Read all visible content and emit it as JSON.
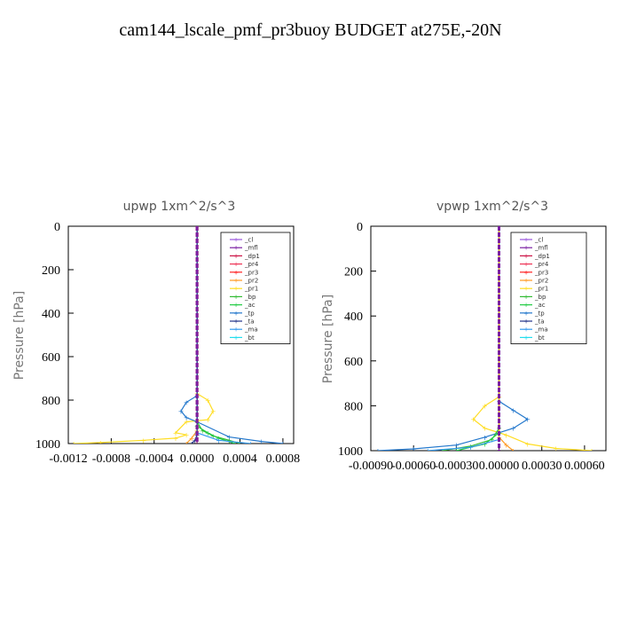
{
  "title": "cam144_lscale_pmf_pr3buoy  BUDGET at275E,-20N",
  "legend_colors": {
    "cl": "#9955dd",
    "mfl": "#7a1fa2",
    "dp1": "#cc1144",
    "pr4": "#ee3355",
    "pr3": "#ff2222",
    "pr2": "#ff9922",
    "pr1": "#ffdd22",
    "bp": "#33bb33",
    "ac": "#22cc44",
    "tp": "#2277cc",
    "ta": "#223388",
    "ma": "#3399ee",
    "bt": "#22ddee"
  },
  "chart_data": [
    {
      "type": "line",
      "title": "upwp   1xm^2/s^3",
      "ylabel": "Pressure  [hPa]",
      "xlim": [
        -0.0012,
        0.0009
      ],
      "ylim": [
        1000,
        0
      ],
      "xticks": [
        -0.0012,
        -0.0008,
        -0.0004,
        0.0,
        0.0004,
        0.0008
      ],
      "xtick_labels": [
        "-0.0012",
        "-0.0008",
        "-0.0004",
        "0.0000",
        "0.0004",
        "0.0008"
      ],
      "yticks": [
        0,
        200,
        400,
        600,
        800,
        1000
      ],
      "ytick_labels": [
        "0",
        "200",
        "400",
        "600",
        "800",
        "1000"
      ],
      "legend": [
        "_cl",
        "_mfl",
        "_dp1",
        "_pr4",
        "_pr3",
        "_pr2",
        "_pr1",
        "_bp",
        "_ac",
        "_tp",
        "_ta",
        "_ma",
        "_bt"
      ],
      "legend_position": "top-right",
      "series": [
        {
          "name": "_pr1",
          "color_key": "pr1",
          "x": [
            0,
            0,
            0.0001,
            0.00015,
            0.0001,
            -0.0001,
            -0.0002,
            -0.0001,
            -0.0002,
            -0.0005,
            -0.0009,
            -0.00115
          ],
          "y": [
            0,
            770,
            800,
            850,
            890,
            900,
            950,
            960,
            975,
            985,
            995,
            1000
          ]
        },
        {
          "name": "_tp",
          "color_key": "tp",
          "x": [
            0,
            0,
            -0.0001,
            -0.00015,
            -0.0001,
            0,
            0.0003,
            0.0006,
            0.0008
          ],
          "y": [
            0,
            780,
            810,
            850,
            880,
            900,
            970,
            990,
            1000
          ]
        },
        {
          "name": "_bp",
          "color_key": "bp",
          "x": [
            0,
            0,
            5e-05,
            0.00015,
            0.0003,
            0.0004
          ],
          "y": [
            0,
            900,
            940,
            965,
            985,
            1000
          ]
        },
        {
          "name": "_ac",
          "color_key": "ac",
          "x": [
            0,
            0,
            0.0001,
            0.0002,
            0.00035
          ],
          "y": [
            0,
            920,
            950,
            975,
            1000
          ]
        },
        {
          "name": "_pr2",
          "color_key": "pr2",
          "x": [
            0,
            0,
            -5e-05,
            -0.0001
          ],
          "y": [
            0,
            940,
            975,
            1000
          ]
        },
        {
          "name": "_ma",
          "color_key": "ma",
          "x": [
            0,
            0,
            0.0002,
            0.0005
          ],
          "y": [
            0,
            950,
            985,
            1000
          ]
        },
        {
          "name": "_ta",
          "color_key": "ta",
          "x": [
            0,
            0,
            -2e-05,
            -5e-05
          ],
          "y": [
            0,
            960,
            985,
            1000
          ]
        },
        {
          "name": "_dp1",
          "color_key": "dp1",
          "x": [
            0,
            0
          ],
          "y": [
            0,
            1000
          ]
        },
        {
          "name": "_pr3",
          "color_key": "pr3",
          "x": [
            0,
            0
          ],
          "y": [
            0,
            1000
          ]
        },
        {
          "name": "_mfl",
          "color_key": "mfl",
          "x": [
            0,
            0
          ],
          "y": [
            0,
            1000
          ]
        }
      ]
    },
    {
      "type": "line",
      "title": "vpwp   1xm^2/s^3",
      "ylabel": "Pressure  [hPa]",
      "xlim": [
        -0.0009,
        0.00075
      ],
      "ylim": [
        1000,
        0
      ],
      "xticks": [
        -0.0009,
        -0.0006,
        -0.0003,
        0.0,
        0.0003,
        0.0006
      ],
      "xtick_labels": [
        "-0.00090",
        "-0.00060",
        "-0.00030",
        "0.00000",
        "0.00030",
        "0.00060"
      ],
      "yticks": [
        0,
        200,
        400,
        600,
        800,
        1000
      ],
      "ytick_labels": [
        "0",
        "200",
        "400",
        "600",
        "800",
        "1000"
      ],
      "legend": [
        "_cl",
        "_mfl",
        "_dp1",
        "_pr4",
        "_pr3",
        "_pr2",
        "_pr1",
        "_bp",
        "_ac",
        "_tp",
        "_ta",
        "_ma",
        "_bt"
      ],
      "legend_position": "top-right",
      "series": [
        {
          "name": "_pr1",
          "color_key": "pr1",
          "x": [
            0,
            0,
            -0.0001,
            -0.00018,
            -0.0001,
            5e-05,
            0.0002,
            0.0004,
            0.00065
          ],
          "y": [
            0,
            760,
            800,
            860,
            900,
            930,
            970,
            990,
            1000
          ]
        },
        {
          "name": "_tp",
          "color_key": "tp",
          "x": [
            0,
            0,
            0.0001,
            0.0002,
            0.0001,
            -0.0001,
            -0.0003,
            -0.0006,
            -0.00085
          ],
          "y": [
            0,
            780,
            820,
            860,
            900,
            940,
            975,
            992,
            1000
          ]
        },
        {
          "name": "_bp",
          "color_key": "bp",
          "x": [
            0,
            0,
            -5e-05,
            -0.0002,
            -0.0004
          ],
          "y": [
            0,
            900,
            950,
            980,
            1000
          ]
        },
        {
          "name": "_ac",
          "color_key": "ac",
          "x": [
            0,
            0,
            -0.0001,
            -0.0003
          ],
          "y": [
            0,
            920,
            970,
            1000
          ]
        },
        {
          "name": "_ma",
          "color_key": "ma",
          "x": [
            0,
            0,
            -0.0002,
            -0.0005
          ],
          "y": [
            0,
            950,
            985,
            1000
          ]
        },
        {
          "name": "_pr2",
          "color_key": "pr2",
          "x": [
            0,
            0,
            5e-05,
            0.0001
          ],
          "y": [
            0,
            940,
            975,
            1000
          ]
        },
        {
          "name": "_dp1",
          "color_key": "dp1",
          "x": [
            0,
            0
          ],
          "y": [
            0,
            1000
          ]
        },
        {
          "name": "_pr3",
          "color_key": "pr3",
          "x": [
            0,
            0
          ],
          "y": [
            0,
            1000
          ]
        },
        {
          "name": "_mfl",
          "color_key": "mfl",
          "x": [
            0,
            0
          ],
          "y": [
            0,
            1000
          ]
        }
      ]
    }
  ]
}
